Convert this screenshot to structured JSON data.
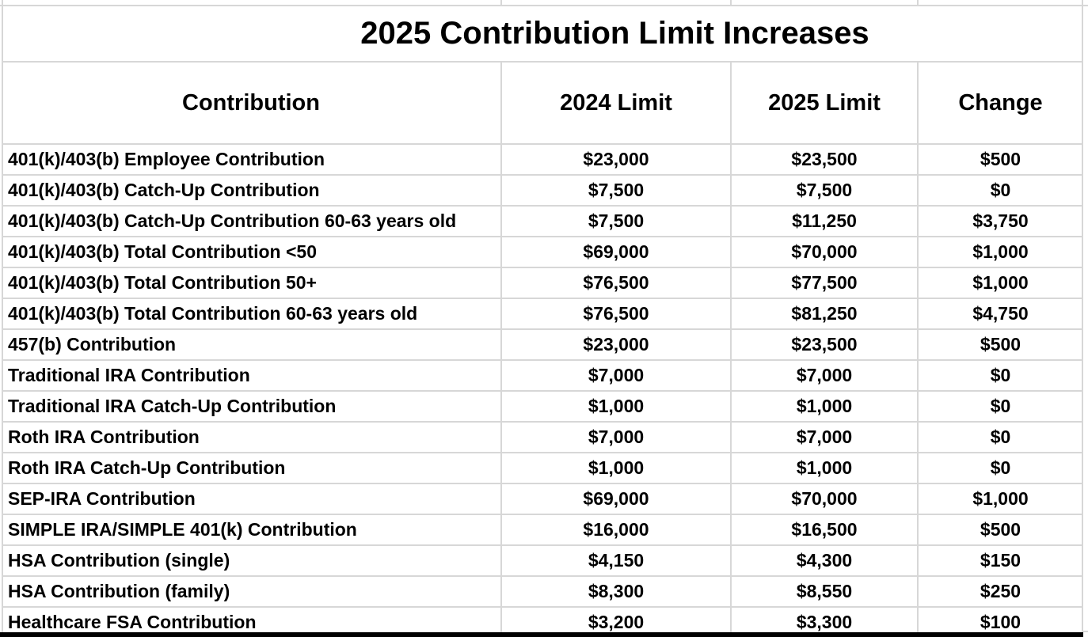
{
  "chart_data": {
    "type": "table",
    "title": "2025 Contribution Limit Increases",
    "columns": [
      "Contribution",
      "2024 Limit",
      "2025 Limit",
      "Change"
    ],
    "rows": [
      [
        "401(k)/403(b) Employee Contribution",
        "$23,000",
        "$23,500",
        "$500"
      ],
      [
        "401(k)/403(b) Catch-Up Contribution",
        "$7,500",
        "$7,500",
        "$0"
      ],
      [
        "401(k)/403(b) Catch-Up Contribution 60-63 years old",
        "$7,500",
        "$11,250",
        "$3,750"
      ],
      [
        "401(k)/403(b) Total Contribution <50",
        "$69,000",
        "$70,000",
        "$1,000"
      ],
      [
        "401(k)/403(b) Total Contribution 50+",
        "$76,500",
        "$77,500",
        "$1,000"
      ],
      [
        "401(k)/403(b) Total Contribution 60-63 years old",
        "$76,500",
        "$81,250",
        "$4,750"
      ],
      [
        "457(b) Contribution",
        "$23,000",
        "$23,500",
        "$500"
      ],
      [
        "Traditional IRA Contribution",
        "$7,000",
        "$7,000",
        "$0"
      ],
      [
        "Traditional IRA Catch-Up Contribution",
        "$1,000",
        "$1,000",
        "$0"
      ],
      [
        "Roth IRA Contribution",
        "$7,000",
        "$7,000",
        "$0"
      ],
      [
        "Roth IRA Catch-Up Contribution",
        "$1,000",
        "$1,000",
        "$0"
      ],
      [
        "SEP-IRA Contribution",
        "$69,000",
        "$70,000",
        "$1,000"
      ],
      [
        "SIMPLE IRA/SIMPLE 401(k) Contribution",
        "$16,000",
        "$16,500",
        "$500"
      ],
      [
        "HSA Contribution (single)",
        "$4,150",
        "$4,300",
        "$150"
      ],
      [
        "HSA Contribution (family)",
        "$8,300",
        "$8,550",
        "$250"
      ],
      [
        "Healthcare FSA Contribution",
        "$3,200",
        "$3,300",
        "$100"
      ]
    ],
    "layout": {
      "title_align": "center",
      "first_column_align": "left",
      "value_columns_align": "center",
      "grid_on": true
    }
  },
  "colors": {
    "text": "#000000",
    "gridline": "#d7d7d7",
    "bottom_border": "#000000",
    "background": "#ffffff"
  }
}
